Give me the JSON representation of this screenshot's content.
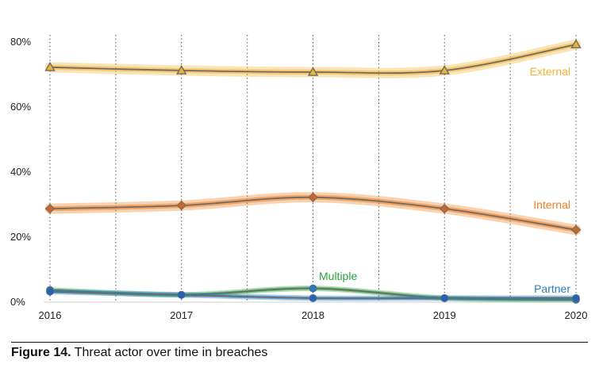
{
  "chart_data": {
    "type": "line",
    "x": [
      "2016",
      "2017",
      "2018",
      "2019",
      "2020"
    ],
    "ylim": [
      0,
      80
    ],
    "y_ticks": [
      "0%",
      "20%",
      "40%",
      "60%",
      "80%"
    ],
    "grid": "vertical dotted",
    "series": [
      {
        "name": "External",
        "values": [
          72,
          71,
          70.5,
          71,
          79
        ],
        "color": "#f2b233",
        "marker": "triangle"
      },
      {
        "name": "Internal",
        "values": [
          28.5,
          29.5,
          32,
          28.5,
          22
        ],
        "color": "#ef7d23",
        "marker": "diamond"
      },
      {
        "name": "Multiple",
        "values": [
          3.5,
          2,
          4,
          1,
          0.5
        ],
        "color": "#2aa33a",
        "marker": "circle"
      },
      {
        "name": "Partner",
        "values": [
          3,
          2,
          1,
          1,
          1
        ],
        "color": "#2a7fc1",
        "marker": "circle"
      }
    ]
  },
  "caption": {
    "label": "Figure 14.",
    "text": " Threat actor over time in breaches"
  }
}
